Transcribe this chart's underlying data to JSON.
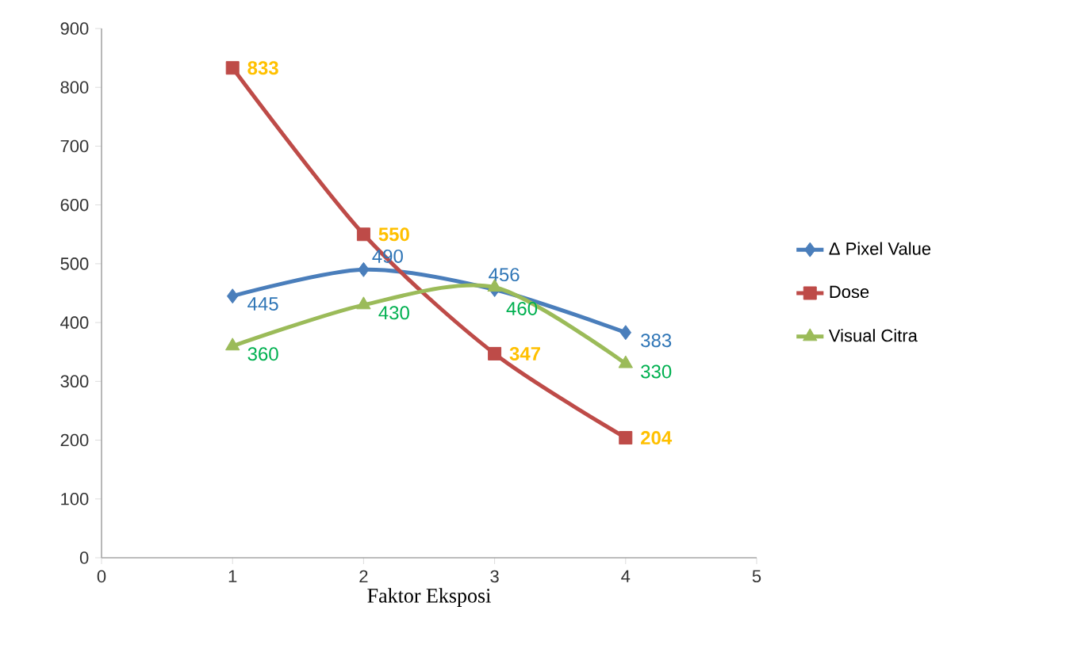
{
  "chart_data": {
    "type": "line",
    "xlabel": "Faktor Eksposi",
    "x": [
      1,
      2,
      3,
      4
    ],
    "series": [
      {
        "name": "Δ Pixel Value",
        "color": "#4a7ebb",
        "marker": "diamond",
        "values": [
          445,
          490,
          456,
          383
        ]
      },
      {
        "name": "Dose",
        "color": "#be4b48",
        "marker": "square",
        "values": [
          833,
          550,
          347,
          204
        ]
      },
      {
        "name": "Visual Citra",
        "color": "#9bbb59",
        "marker": "triangle",
        "values": [
          360,
          430,
          460,
          330
        ]
      }
    ],
    "xlim": [
      0,
      5
    ],
    "xticks": [
      0,
      1,
      2,
      3,
      4,
      5
    ],
    "ylim": [
      0,
      900
    ],
    "yticks": [
      0,
      100,
      200,
      300,
      400,
      500,
      600,
      700,
      800,
      900
    ],
    "grid": false,
    "legend": "right",
    "data_labels": true
  }
}
